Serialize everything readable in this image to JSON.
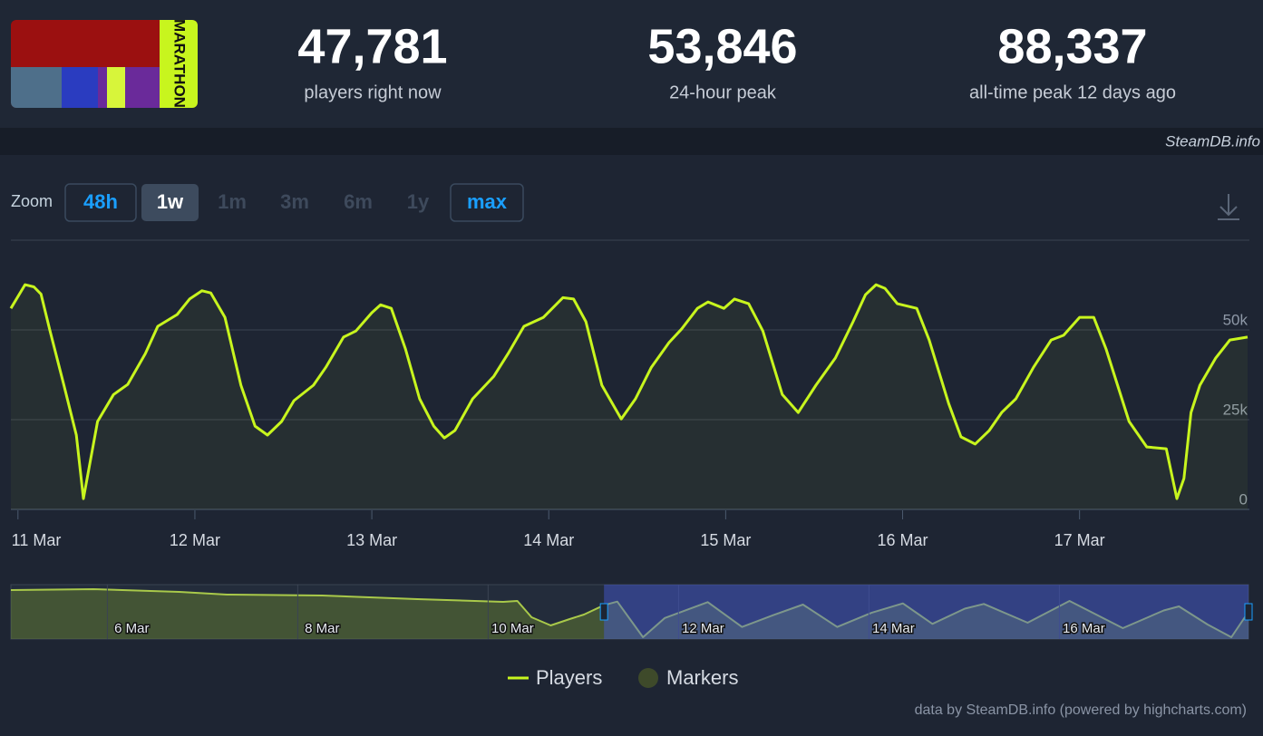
{
  "header": {
    "logo_text": "MARATHON",
    "stats": [
      {
        "value": "47,781",
        "label": "players right now"
      },
      {
        "value": "53,846",
        "label": "24-hour peak"
      },
      {
        "value": "88,337",
        "label": "all-time peak 12 days ago"
      }
    ]
  },
  "watermark": "SteamDB.info",
  "zoom": {
    "label": "Zoom",
    "buttons": [
      "48h",
      "1w",
      "1m",
      "3m",
      "6m",
      "1y",
      "max"
    ]
  },
  "chart_data": [
    {
      "type": "line",
      "x": [
        10.96,
        11.04,
        11.09,
        11.13,
        11.18,
        11.26,
        11.33,
        11.37,
        11.45,
        11.54,
        11.62,
        11.72,
        11.79,
        11.9,
        11.97,
        12.04,
        12.09,
        12.17,
        12.26,
        12.34,
        12.41,
        12.49,
        12.56,
        12.67,
        12.74,
        12.84,
        12.91,
        13.0,
        13.05,
        13.11,
        13.19,
        13.27,
        13.35,
        13.41,
        13.47,
        13.57,
        13.69,
        13.77,
        13.86,
        13.97,
        14.08,
        14.14,
        14.21,
        14.3,
        14.41,
        14.49,
        14.58,
        14.68,
        14.75,
        14.84,
        14.9,
        14.99,
        15.05,
        15.13,
        15.21,
        15.32,
        15.41,
        15.51,
        15.62,
        15.72,
        15.79,
        15.85,
        15.9,
        15.97,
        16.08,
        16.15,
        16.26,
        16.33,
        16.41,
        16.49,
        16.56,
        16.64,
        16.74,
        16.84,
        16.91,
        17.0,
        17.08,
        17.15,
        17.28,
        17.38,
        17.49,
        17.55,
        17.59,
        17.63,
        17.68,
        17.77,
        17.85,
        17.95
      ],
      "series": [
        {
          "name": "Players",
          "color": "#c8f51e",
          "values": [
            56000,
            62600,
            62000,
            60000,
            50000,
            34600,
            20700,
            3000,
            24500,
            32000,
            34800,
            43400,
            51000,
            54300,
            58600,
            60900,
            60300,
            53500,
            34600,
            23200,
            20700,
            24500,
            30300,
            34600,
            39600,
            48000,
            49700,
            54800,
            57000,
            56000,
            44700,
            30800,
            23200,
            19900,
            22000,
            30800,
            37100,
            43400,
            51000,
            53500,
            59000,
            58600,
            52300,
            34600,
            25200,
            30800,
            39600,
            46500,
            50200,
            56000,
            57800,
            56000,
            58600,
            57300,
            49700,
            32000,
            27000,
            34600,
            42200,
            52300,
            59800,
            62600,
            61600,
            57300,
            56000,
            47200,
            29500,
            20200,
            18200,
            22000,
            27000,
            30800,
            39600,
            47200,
            48500,
            53500,
            53500,
            44700,
            24500,
            17400,
            16900,
            3000,
            8600,
            27000,
            34600,
            42200,
            47200,
            48000
          ]
        }
      ],
      "markers": {
        "name": "Markers",
        "color": "#3e4a2a"
      },
      "xlim": [
        10.96,
        17.96
      ],
      "xticks": [
        {
          "value": 11,
          "label": "11 Mar"
        },
        {
          "value": 12,
          "label": "12 Mar"
        },
        {
          "value": 13,
          "label": "13 Mar"
        },
        {
          "value": 14,
          "label": "14 Mar"
        },
        {
          "value": 15,
          "label": "15 Mar"
        },
        {
          "value": 16,
          "label": "16 Mar"
        },
        {
          "value": 17,
          "label": "17 Mar"
        }
      ],
      "ylim": [
        0,
        75000
      ],
      "yticks": [
        0,
        {
          "value": 25000,
          "label": "25k"
        },
        {
          "value": 50000,
          "label": "50k"
        }
      ],
      "grid": true,
      "legend": "bottom"
    },
    {
      "type": "line",
      "x": [
        4.73,
        5.6,
        6.5,
        7.0,
        8.0,
        9.0,
        9.9,
        10.05,
        10.2,
        10.4,
        10.6,
        10.75,
        10.96,
        11.1,
        11.37,
        11.6,
        12.05,
        12.41,
        12.74,
        13.05,
        13.41,
        13.77,
        14.1,
        14.41,
        14.75,
        14.95,
        15.41,
        15.85,
        16.41,
        16.84,
        17.0,
        17.3,
        17.55,
        17.73
      ],
      "values": [
        81000,
        82500,
        78000,
        73500,
        72000,
        66000,
        61500,
        63000,
        36000,
        22500,
        33000,
        40500,
        56000,
        62000,
        3000,
        34800,
        61000,
        20000,
        39600,
        57000,
        20000,
        43400,
        59000,
        25000,
        50200,
        58000,
        27000,
        63000,
        18000,
        47200,
        54000,
        24000,
        3000,
        45000
      ],
      "color": "#a9c94a",
      "xlim": [
        4.73,
        17.73
      ],
      "xticks": [
        {
          "value": 6,
          "label": "6 Mar"
        },
        {
          "value": 8,
          "label": "8 Mar"
        },
        {
          "value": 10,
          "label": "10 Mar"
        },
        {
          "value": 12,
          "label": "12 Mar"
        },
        {
          "value": 14,
          "label": "14 Mar"
        },
        {
          "value": 16,
          "label": "16 Mar"
        }
      ],
      "ylim": [
        0,
        90000
      ]
    }
  ],
  "credits": "data by SteamDB.info (powered by highcharts.com)"
}
